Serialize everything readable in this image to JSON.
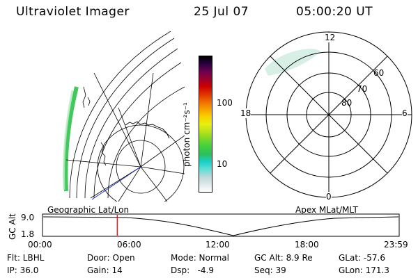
{
  "header": {
    "instrument": "Ultraviolet Imager",
    "date": "25 Jul 07",
    "time": "05:00:20 UT"
  },
  "colorbar": {
    "label": "photon cm⁻²s⁻¹",
    "ticks": [
      "100",
      "10"
    ],
    "colors": [
      "#ffffff",
      "#dfe8ea",
      "#bcd7da",
      "#5fe0d6",
      "#19cfc8",
      "#2dbf5d",
      "#40d040",
      "#79d62a",
      "#b9e21a",
      "#e9ef10",
      "#f7d000",
      "#f7a000",
      "#f06a00",
      "#e03000",
      "#cc0000",
      "#9a0030",
      "#6a0050",
      "#2a0040",
      "#000000"
    ]
  },
  "geo_panel": {
    "label": "Geographic Lat/Lon"
  },
  "apex_panel": {
    "label": "Apex MLat/MLT",
    "mlt_labels": {
      "top": "12",
      "left": "18",
      "right": "6",
      "bottom": "0"
    },
    "lat_labels": [
      "60",
      "70",
      "80"
    ]
  },
  "altitude_plot": {
    "ylabel": "GC Alt",
    "ytick_top": "9.0",
    "ytick_bottom": "1.8",
    "xticks": [
      "00:00",
      "06:00",
      "12:00",
      "18:00",
      "23:59"
    ],
    "current_hour": 5.0,
    "marker_color": "#cc0000"
  },
  "status": {
    "filter": "Flt: LBHL",
    "door": "Door: Open",
    "mode": "Mode: Normal",
    "gc_alt": "GC Alt: 8.9 Re",
    "glat": "GLat: -57.6",
    "ip": "IP: 36.0",
    "gain": "Gain: 14",
    "dsp": "Dsp:   -4.9",
    "seq": "Seq: 39",
    "glon": "GLon: 171.3"
  }
}
